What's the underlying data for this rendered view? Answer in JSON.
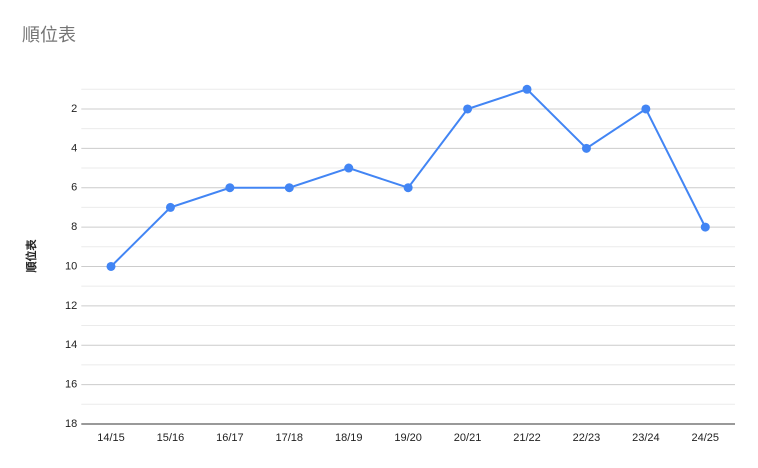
{
  "chart_data": {
    "type": "line",
    "title": "順位表",
    "y_label": "順位表",
    "categories": [
      "14/15",
      "15/16",
      "16/17",
      "17/18",
      "18/19",
      "19/20",
      "20/21",
      "21/22",
      "22/23",
      "23/24",
      "24/25"
    ],
    "series": [
      {
        "name": "順位表",
        "color": "#4285f4",
        "values": [
          10,
          7,
          6,
          6,
          5,
          6,
          2,
          1,
          4,
          2,
          8
        ]
      }
    ],
    "ylim": [
      1,
      18
    ],
    "y_reversed": true,
    "yticks": [
      2,
      4,
      6,
      8,
      10,
      12,
      14,
      16,
      18
    ],
    "minor_yticks": [
      1,
      3,
      5,
      7,
      9,
      11,
      13,
      15,
      17
    ],
    "grid": true
  }
}
